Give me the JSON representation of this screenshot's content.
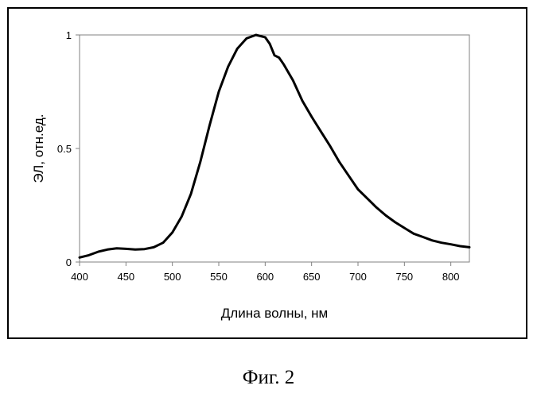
{
  "chart_data": {
    "type": "line",
    "title": "",
    "xlabel": "Длина волны, нм",
    "ylabel": "ЭЛ, отн.ед.",
    "xlim": [
      400,
      820
    ],
    "ylim": [
      0,
      1
    ],
    "x_ticks": [
      400,
      450,
      500,
      550,
      600,
      650,
      700,
      750,
      800
    ],
    "x_tick_labels": [
      "400",
      "450",
      "500",
      "550",
      "600",
      "650",
      "700",
      "750",
      "800"
    ],
    "y_ticks": [
      0,
      0.5,
      1
    ],
    "y_tick_labels": [
      "0",
      "0.5",
      "1"
    ],
    "grid": false,
    "legend": "none",
    "series": [
      {
        "x": [
          400,
          410,
          420,
          430,
          440,
          450,
          460,
          470,
          480,
          490,
          500,
          510,
          520,
          530,
          540,
          550,
          560,
          570,
          580,
          590,
          600,
          605,
          610,
          615,
          620,
          630,
          640,
          650,
          660,
          670,
          680,
          690,
          700,
          710,
          720,
          730,
          740,
          750,
          760,
          770,
          780,
          790,
          800,
          810,
          820
        ],
        "y": [
          0.02,
          0.03,
          0.045,
          0.055,
          0.06,
          0.058,
          0.055,
          0.057,
          0.065,
          0.085,
          0.13,
          0.2,
          0.3,
          0.44,
          0.6,
          0.75,
          0.86,
          0.94,
          0.985,
          1.0,
          0.99,
          0.96,
          0.91,
          0.9,
          0.87,
          0.8,
          0.71,
          0.64,
          0.575,
          0.51,
          0.44,
          0.38,
          0.32,
          0.28,
          0.24,
          0.205,
          0.175,
          0.15,
          0.125,
          0.11,
          0.095,
          0.085,
          0.078,
          0.07,
          0.065
        ]
      }
    ],
    "line_color": "#000000"
  },
  "figure": {
    "caption": "Фиг. 2"
  }
}
